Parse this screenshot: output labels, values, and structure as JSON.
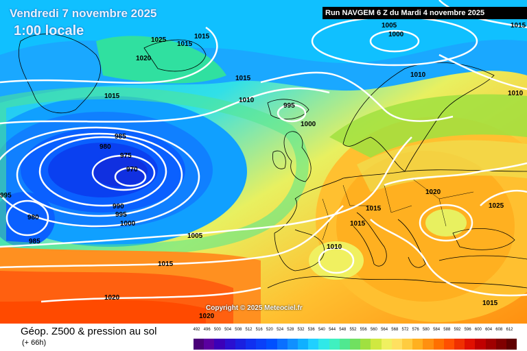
{
  "header": {
    "date_line": "Vendredi 7 novembre 2025",
    "time_line": "1:00 locale",
    "run_line": "Run NAVGEM 6 Z du Mardi 4 novembre 2025"
  },
  "copyright": "Copyright © 2025 Meteociel.fr",
  "legend": {
    "title": "Géop. Z500 & pression au sol",
    "subtitle": "(+ 66h)",
    "scale_values": [
      "492",
      "496",
      "500",
      "504",
      "508",
      "512",
      "516",
      "520",
      "524",
      "528",
      "532",
      "536",
      "540",
      "544",
      "548",
      "552",
      "556",
      "560",
      "564",
      "568",
      "572",
      "576",
      "580",
      "584",
      "588",
      "592",
      "596",
      "600",
      "604",
      "608",
      "612"
    ],
    "scale_colors": [
      "#4a0078",
      "#5a00a0",
      "#3b00b8",
      "#2a10d0",
      "#1a20e0",
      "#1030f0",
      "#0a40f8",
      "#0050ff",
      "#0a70ff",
      "#1090ff",
      "#10b0ff",
      "#20d0ff",
      "#30e8e8",
      "#40f0c0",
      "#50e890",
      "#70e060",
      "#a0e040",
      "#d0e840",
      "#f0f060",
      "#ffe060",
      "#ffcc40",
      "#ffb020",
      "#ff9010",
      "#ff7000",
      "#ff5000",
      "#f03000",
      "#e01000",
      "#c00000",
      "#a00000",
      "#800000",
      "#600000"
    ]
  },
  "isobars": [
    {
      "label": "1025"
    },
    {
      "label": "1015"
    },
    {
      "label": "1015"
    },
    {
      "label": "1020"
    },
    {
      "label": "1015"
    },
    {
      "label": "1015"
    },
    {
      "label": "1010"
    },
    {
      "label": "995"
    },
    {
      "label": "1000"
    },
    {
      "label": "1005"
    },
    {
      "label": "1000"
    },
    {
      "label": "1015"
    },
    {
      "label": "1010"
    },
    {
      "label": "1010"
    },
    {
      "label": "985"
    },
    {
      "label": "980"
    },
    {
      "label": "975"
    },
    {
      "label": "970"
    },
    {
      "label": "995"
    },
    {
      "label": "990"
    },
    {
      "label": "995"
    },
    {
      "label": "1000"
    },
    {
      "label": "980"
    },
    {
      "label": "985"
    },
    {
      "label": "1005"
    },
    {
      "label": "1015"
    },
    {
      "label": "1020"
    },
    {
      "label": "1020"
    },
    {
      "label": "1015"
    },
    {
      "label": "1015"
    },
    {
      "label": "1025"
    },
    {
      "label": "1010"
    },
    {
      "label": "1015"
    },
    {
      "label": "1020"
    }
  ]
}
